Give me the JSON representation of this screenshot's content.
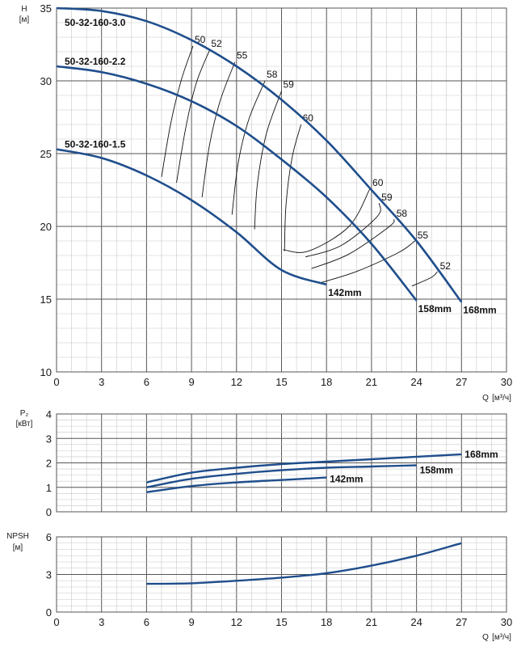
{
  "colors": {
    "curve": "#1f4e8c",
    "grid_major": "#555555",
    "grid_minor": "#c8c8c8",
    "iso": "#111111"
  },
  "chart_data": [
    {
      "type": "line",
      "id": "head",
      "xlabel": "Q",
      "xunit": "[м³/ч]",
      "ylabel": "H",
      "yunit": "[м]",
      "xlim": [
        0,
        30
      ],
      "ylim": [
        10,
        35
      ],
      "xticks": [
        "0",
        "3",
        "6",
        "9",
        "12",
        "15",
        "18",
        "21",
        "24",
        "27",
        "30"
      ],
      "yticks": [
        "10",
        "15",
        "20",
        "25",
        "30",
        "35"
      ],
      "grid": true,
      "series": [
        {
          "name": "50-32-160-3.0",
          "diameter": "168mm",
          "x": [
            0,
            3,
            6,
            9,
            12,
            15,
            18,
            21,
            24,
            27
          ],
          "y": [
            35.0,
            34.8,
            34.1,
            32.8,
            31.0,
            28.7,
            25.9,
            22.5,
            19.0,
            14.8
          ]
        },
        {
          "name": "50-32-160-2.2",
          "diameter": "158mm",
          "x": [
            0,
            3,
            6,
            9,
            12,
            15,
            18,
            21,
            24
          ],
          "y": [
            31.0,
            30.6,
            29.8,
            28.6,
            26.9,
            24.6,
            22.0,
            18.8,
            14.9
          ]
        },
        {
          "name": "50-32-160-1.5",
          "diameter": "142mm",
          "x": [
            0,
            3,
            6,
            9,
            12,
            15,
            18
          ],
          "y": [
            25.3,
            24.7,
            23.5,
            21.8,
            19.6,
            17.0,
            16.0
          ]
        }
      ],
      "iso_efficiency": [
        {
          "label": "50",
          "x": [
            7.0,
            7.6,
            8.3,
            9.1
          ],
          "y": [
            23.4,
            27.0,
            30.0,
            32.4
          ]
        },
        {
          "label": "52",
          "x": [
            8.0,
            8.6,
            9.3,
            10.2
          ],
          "y": [
            23.0,
            26.7,
            29.8,
            32.1
          ]
        },
        {
          "label": "55",
          "x": [
            9.7,
            10.2,
            10.9,
            11.9
          ],
          "y": [
            22.0,
            25.6,
            28.6,
            31.3
          ]
        },
        {
          "label": "58",
          "x": [
            11.7,
            12.1,
            12.8,
            13.9
          ],
          "y": [
            20.8,
            24.3,
            27.3,
            30.0
          ]
        },
        {
          "label": "59",
          "x": [
            13.2,
            13.4,
            14.0,
            15.0
          ],
          "y": [
            19.8,
            23.0,
            26.4,
            29.3
          ]
        },
        {
          "label": "60",
          "x": [
            15.2,
            15.3,
            15.7,
            16.3
          ],
          "y": [
            18.3,
            21.5,
            24.7,
            27.0
          ]
        }
      ],
      "iso_efficiency_right": [
        {
          "label": "60",
          "x": [
            15.1,
            16.8,
            19.5,
            20.9
          ],
          "y": [
            18.4,
            18.3,
            20.0,
            22.6
          ]
        },
        {
          "label": "59",
          "x": [
            16.6,
            19.0,
            21.4,
            21.5
          ],
          "y": [
            17.9,
            18.7,
            20.7,
            21.6
          ]
        },
        {
          "label": "58",
          "x": [
            17.0,
            19.5,
            22.2,
            22.5
          ],
          "y": [
            17.1,
            18.1,
            20.0,
            20.5
          ]
        },
        {
          "label": "55",
          "x": [
            17.5,
            20.0,
            22.8,
            23.9
          ],
          "y": [
            16.1,
            16.9,
            18.2,
            19.0
          ]
        },
        {
          "label": "52",
          "x": [
            23.7,
            25.0,
            25.4
          ],
          "y": [
            15.9,
            16.5,
            16.9
          ]
        }
      ]
    },
    {
      "type": "line",
      "id": "power",
      "ylabel": "P₂",
      "yunit": "[кВт]",
      "xlim": [
        0,
        30
      ],
      "ylim": [
        0,
        4
      ],
      "yticks": [
        "0",
        "1",
        "2",
        "3",
        "4"
      ],
      "grid": true,
      "series": [
        {
          "name": "168mm",
          "x": [
            6,
            9,
            12,
            15,
            18,
            21,
            24,
            27
          ],
          "y": [
            1.2,
            1.6,
            1.8,
            1.95,
            2.05,
            2.15,
            2.25,
            2.35
          ]
        },
        {
          "name": "158mm",
          "x": [
            6,
            9,
            12,
            15,
            18,
            21,
            24
          ],
          "y": [
            1.0,
            1.35,
            1.55,
            1.7,
            1.8,
            1.85,
            1.9
          ]
        },
        {
          "name": "142mm",
          "x": [
            6,
            9,
            12,
            15,
            18
          ],
          "y": [
            0.8,
            1.05,
            1.2,
            1.3,
            1.4
          ]
        }
      ]
    },
    {
      "type": "line",
      "id": "npsh",
      "ylabel": "NPSH",
      "yunit": "[м]",
      "xlabel": "Q",
      "xunit": "[м³/ч]",
      "xlim": [
        0,
        30
      ],
      "ylim": [
        0,
        6
      ],
      "xticks": [
        "0",
        "3",
        "6",
        "9",
        "12",
        "15",
        "18",
        "21",
        "24",
        "27",
        "30"
      ],
      "yticks": [
        "0",
        "3",
        "6"
      ],
      "grid": true,
      "series": [
        {
          "name": "",
          "x": [
            6,
            9,
            12,
            15,
            18,
            21,
            24,
            27
          ],
          "y": [
            2.25,
            2.3,
            2.5,
            2.75,
            3.1,
            3.7,
            4.5,
            5.5
          ]
        }
      ]
    }
  ]
}
